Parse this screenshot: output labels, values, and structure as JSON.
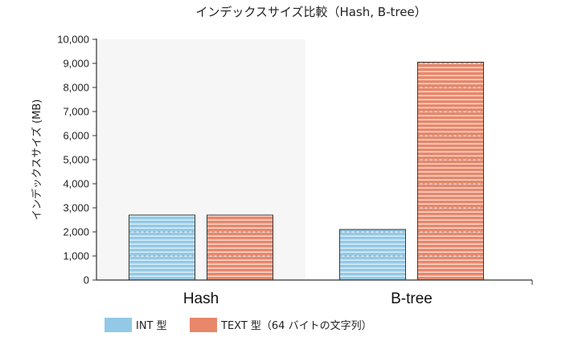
{
  "chart_data": {
    "type": "bar",
    "title": "インデックスサイズ比較（Hash, B-tree）",
    "ylabel": "インデックスサイズ (MB)",
    "xlabel": "",
    "categories": [
      "Hash",
      "B-tree"
    ],
    "series": [
      {
        "name": "INT 型",
        "values": [
          2700,
          2100
        ]
      },
      {
        "name": "TEXT 型（64 バイトの文字列）",
        "values": [
          2700,
          9050
        ]
      }
    ],
    "ylim": [
      0,
      10000
    ],
    "yticks": [
      0,
      1000,
      2000,
      3000,
      4000,
      5000,
      6000,
      7000,
      8000,
      9000,
      10000
    ],
    "ytick_labels": [
      "0",
      "1,000",
      "2,000",
      "3,000",
      "4,000",
      "5,000",
      "6,000",
      "7,000",
      "8,000",
      "9,000",
      "10,000"
    ],
    "grid": false,
    "legend_position": "bottom-left",
    "highlighted_category": "Hash",
    "colors": {
      "series": [
        "#93c9e6",
        "#e8876a"
      ],
      "highlight_band": "#f6f6f6",
      "axis": "#333333"
    }
  }
}
